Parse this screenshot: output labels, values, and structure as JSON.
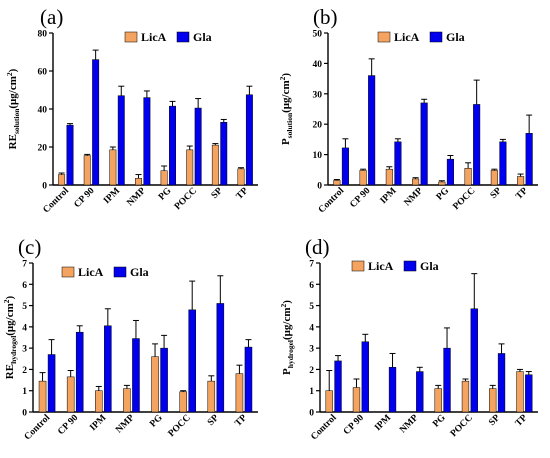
{
  "chart_data": [
    {
      "type": "bar",
      "panel_label": "(a)",
      "ylabel": {
        "main": "RE",
        "sub": "solution",
        "unit": "(μg/cm",
        "sup": "2",
        "close": ")"
      },
      "categories": [
        "Control",
        "CP 90",
        "IPM",
        "NMP",
        "PG",
        "POCC",
        "SP",
        "TP"
      ],
      "ylim": [
        0,
        80
      ],
      "yticks": [
        0,
        20,
        40,
        60,
        80
      ],
      "series": [
        {
          "name": "LicA",
          "color": "#f4a460",
          "values": [
            5.5,
            15.5,
            18.5,
            3.5,
            7.5,
            18.5,
            21,
            8.5
          ],
          "errors": [
            0.8,
            0.6,
            1.5,
            2,
            2.5,
            2,
            0.8,
            0.6
          ]
        },
        {
          "name": "Gla",
          "color": "#0000ee",
          "values": [
            31.5,
            66,
            47,
            46,
            41.5,
            40.5,
            33,
            47.5
          ],
          "errors": [
            0.8,
            5,
            5,
            3.5,
            2.5,
            5,
            1.5,
            4.5
          ]
        }
      ]
    },
    {
      "type": "bar",
      "panel_label": "(b)",
      "ylabel": {
        "main": "P",
        "sub": "solution",
        "unit": "(μg/cm",
        "sup": "2",
        "close": ")"
      },
      "categories": [
        "Control",
        "CP 90",
        "IPM",
        "NMP",
        "PG",
        "POCC",
        "SP",
        "TP"
      ],
      "ylim": [
        0,
        50
      ],
      "yticks": [
        0,
        10,
        20,
        30,
        40,
        50
      ],
      "series": [
        {
          "name": "LicA",
          "color": "#f4a460",
          "values": [
            1.5,
            4.8,
            5.2,
            2,
            1,
            5.5,
            4.8,
            2.8
          ],
          "errors": [
            0.3,
            0.4,
            0.8,
            0.4,
            0.4,
            1.8,
            0.4,
            0.8
          ]
        },
        {
          "name": "Gla",
          "color": "#0000ee",
          "values": [
            12.2,
            36,
            14.2,
            27,
            8.5,
            26.5,
            14.2,
            17
          ],
          "errors": [
            3,
            5.5,
            1,
            1.2,
            1.2,
            8,
            0.8,
            6
          ]
        }
      ]
    },
    {
      "type": "bar",
      "panel_label": "(c)",
      "ylabel": {
        "main": "RE",
        "sub": "hydrogel",
        "unit": "(μg/cm",
        "sup": "2",
        "close": ")"
      },
      "categories": [
        "Control",
        "CP 90",
        "IPM",
        "NMP",
        "PG",
        "POCC",
        "SP",
        "TP"
      ],
      "ylim": [
        0,
        7
      ],
      "yticks": [
        0,
        1,
        2,
        3,
        4,
        5,
        6,
        7
      ],
      "series": [
        {
          "name": "LicA",
          "color": "#f4a460",
          "values": [
            1.45,
            1.65,
            1,
            1.1,
            2.6,
            0.95,
            1.45,
            1.8
          ],
          "errors": [
            0.4,
            0.3,
            0.2,
            0.15,
            0.6,
            0.05,
            0.25,
            0.4
          ]
        },
        {
          "name": "Gla",
          "color": "#0000ee",
          "values": [
            2.7,
            3.75,
            4.05,
            3.45,
            3,
            4.8,
            5.1,
            3.05
          ],
          "errors": [
            0.7,
            0.3,
            0.8,
            0.85,
            0.6,
            1.35,
            1.3,
            0.35
          ]
        }
      ]
    },
    {
      "type": "bar",
      "panel_label": "(d)",
      "ylabel": {
        "main": "P",
        "sub": "hydrogel",
        "unit": "(μg/cm",
        "sup": "2",
        "close": ")"
      },
      "categories": [
        "Control",
        "CP 90",
        "IPM",
        "NMP",
        "PG",
        "POCC",
        "SP",
        "TP"
      ],
      "ylim": [
        0,
        7
      ],
      "yticks": [
        0,
        1,
        2,
        3,
        4,
        5,
        6,
        7
      ],
      "series": [
        {
          "name": "LicA",
          "color": "#f4a460",
          "values": [
            1,
            1.15,
            0,
            0,
            1.1,
            1.45,
            1.1,
            1.9
          ],
          "errors": [
            0.95,
            0.4,
            0,
            0,
            0.15,
            0.1,
            0.15,
            0.1
          ]
        },
        {
          "name": "Gla",
          "color": "#0000ee",
          "values": [
            2.4,
            3.3,
            2.1,
            1.9,
            3,
            4.85,
            2.75,
            1.75
          ],
          "errors": [
            0.25,
            0.35,
            0.65,
            0.2,
            0.95,
            1.65,
            0.45,
            0.15
          ]
        }
      ]
    }
  ]
}
